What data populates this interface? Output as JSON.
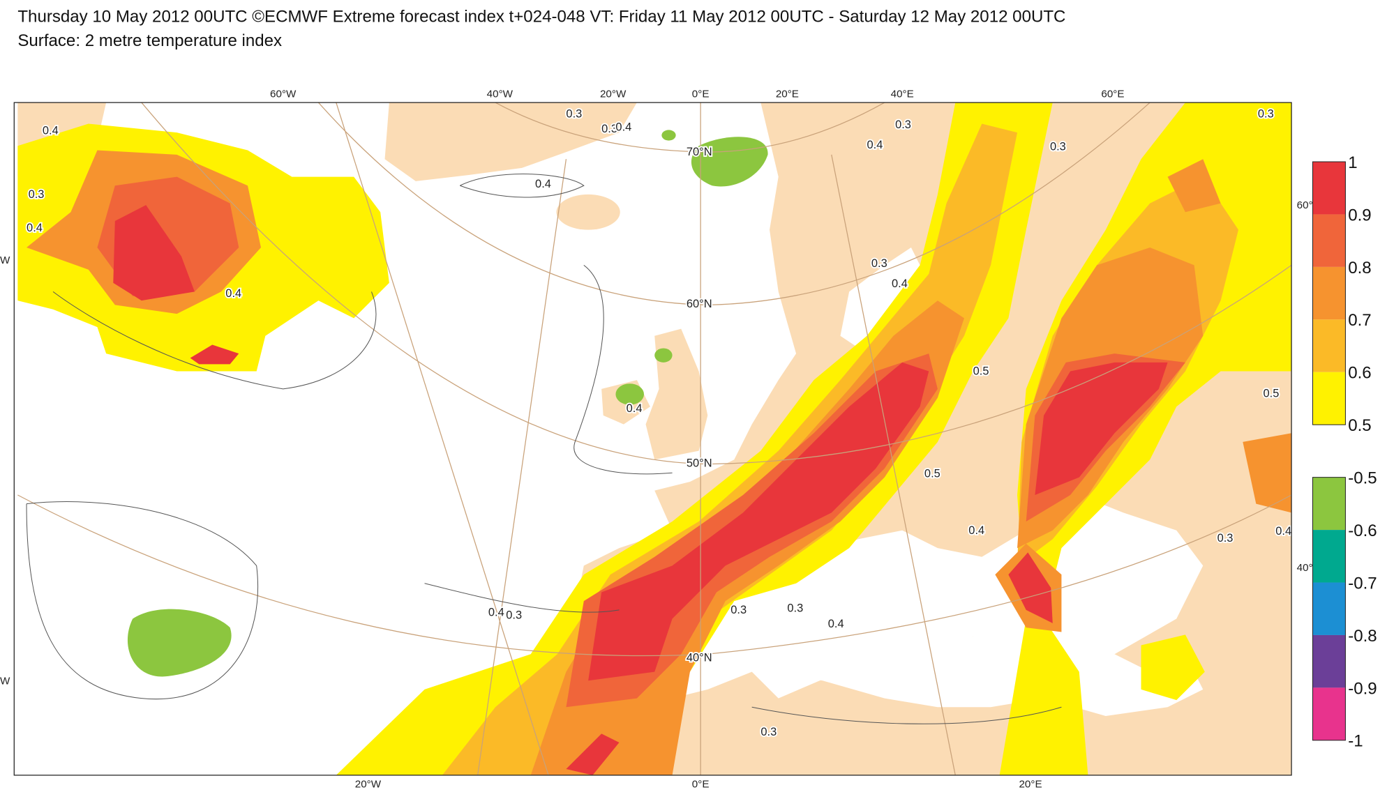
{
  "header": {
    "line1": "Thursday 10 May 2012 00UTC ©ECMWF Extreme forecast index t+024-048 VT: Friday 11 May 2012 00UTC - Saturday 12 May 2012 00UTC",
    "line2": "Surface: 2 metre temperature index"
  },
  "map": {
    "lon_labels_top": [
      "60°W",
      "40°W",
      "20°W",
      "0°E",
      "20°E",
      "40°E",
      "60°E"
    ],
    "lon_labels_bottom": [
      "20°W",
      "0°E",
      "20°E"
    ],
    "lat_labels": [
      "70°N",
      "60°N",
      "50°N",
      "40°N"
    ],
    "edge_labels": [
      "W",
      "W",
      "60°",
      "40°"
    ],
    "contour_labels": [
      0.4,
      0.3,
      0.4,
      0.4,
      0.4,
      0.3,
      0.3,
      0.4,
      0.4,
      0.3,
      0.3,
      0.4,
      0.4,
      0.5,
      0.4,
      0.4,
      0.3,
      0.3,
      0.3,
      0.4,
      0.3,
      0.3,
      0.4,
      0.5,
      0.3,
      0.5,
      0.3
    ]
  },
  "legend": {
    "warm": {
      "labels": [
        1,
        0.9,
        0.8,
        0.7,
        0.6,
        0.5
      ],
      "colors": [
        "#e8363b",
        "#f0653a",
        "#f6932f",
        "#fbba27",
        "#fff200"
      ]
    },
    "cold": {
      "labels": [
        -0.5,
        -0.6,
        -0.7,
        -0.8,
        -0.9,
        -1
      ],
      "colors": [
        "#8cc63f",
        "#00a98f",
        "#1c8fd3",
        "#6b3f98",
        "#e8338d"
      ]
    }
  }
}
